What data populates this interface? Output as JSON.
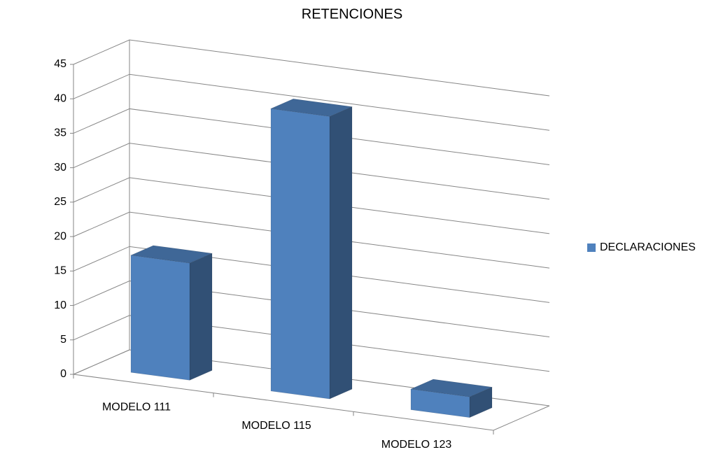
{
  "chart_data": {
    "type": "bar3d",
    "title": "RETENCIONES",
    "categories": [
      "MODELO 111",
      "MODELO 115",
      "MODELO 123"
    ],
    "series": [
      {
        "name": "DECLARACIONES",
        "color": "#4f81bd",
        "values": [
          17,
          41,
          3
        ]
      }
    ],
    "ylim": [
      0,
      45
    ],
    "yticks": [
      0,
      5,
      10,
      15,
      20,
      25,
      30,
      35,
      40,
      45
    ],
    "grid": true,
    "legend": "right"
  }
}
